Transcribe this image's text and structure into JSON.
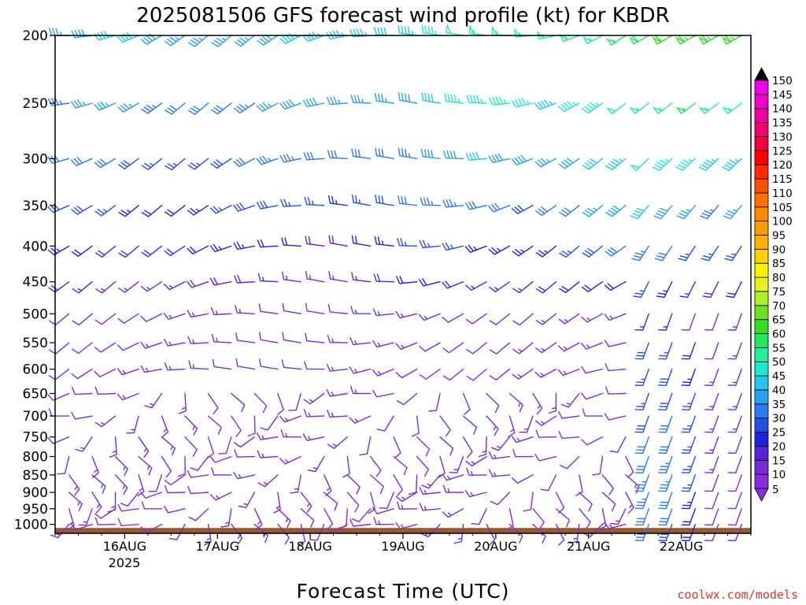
{
  "chart_data": {
    "type": "wind-barb-profile",
    "title": "2025081506 GFS forecast wind profile (kt) for KBDR",
    "xlabel": "Forecast Time (UTC)",
    "credit": "coolwx.com/models",
    "year_label": "2025",
    "x_ticks": [
      "16AUG",
      "17AUG",
      "18AUG",
      "19AUG",
      "20AUG",
      "21AUG",
      "22AUG"
    ],
    "y_ticks": [
      200,
      250,
      300,
      350,
      400,
      450,
      500,
      550,
      600,
      650,
      700,
      750,
      800,
      850,
      900,
      950,
      1000
    ],
    "y_scale": "log-pressure",
    "ylim": [
      1030,
      200
    ],
    "x_range_days": [
      15.25,
      22.75
    ],
    "time_step_hours": 6,
    "barb_levels": [
      200,
      250,
      300,
      350,
      400,
      450,
      500,
      550,
      600,
      650,
      700,
      750,
      800,
      850,
      900,
      950,
      1000
    ],
    "ground": {
      "color": "#9a5a30",
      "pressure": 1012
    },
    "colorbar": {
      "ticks": [
        5,
        10,
        15,
        20,
        25,
        30,
        35,
        40,
        45,
        50,
        55,
        60,
        65,
        70,
        75,
        80,
        85,
        90,
        95,
        100,
        105,
        110,
        115,
        120,
        125,
        130,
        135,
        140,
        145,
        150
      ],
      "colors": [
        "#8a2be2",
        "#7a2bd8",
        "#5a1fe0",
        "#2020e0",
        "#2050e8",
        "#2a7af0",
        "#28a0f0",
        "#20c8f0",
        "#20e8d0",
        "#20f0a0",
        "#20e860",
        "#30e020",
        "#70e020",
        "#b0f020",
        "#e8f020",
        "#fff000",
        "#ffd000",
        "#ffb000",
        "#ff9a00",
        "#ff8a00",
        "#ff7000",
        "#ff5000",
        "#ff2a00",
        "#ff0000",
        "#f00040",
        "#f00070",
        "#f000a0",
        "#f000c8",
        "#f000f0",
        "#000000"
      ]
    }
  }
}
